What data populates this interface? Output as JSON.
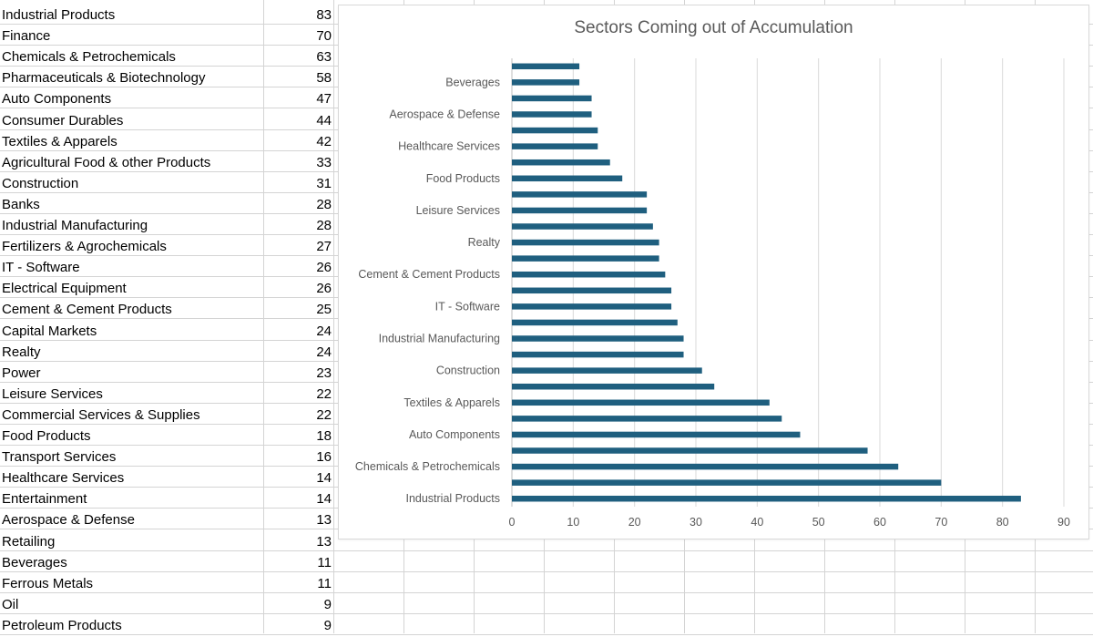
{
  "sheet": {
    "rows": [
      {
        "name": "Industrial Products",
        "value": 83
      },
      {
        "name": "Finance",
        "value": 70
      },
      {
        "name": "Chemicals & Petrochemicals",
        "value": 63
      },
      {
        "name": "Pharmaceuticals & Biotechnology",
        "value": 58
      },
      {
        "name": "Auto Components",
        "value": 47
      },
      {
        "name": "Consumer Durables",
        "value": 44
      },
      {
        "name": "Textiles & Apparels",
        "value": 42
      },
      {
        "name": "Agricultural Food & other Products",
        "value": 33
      },
      {
        "name": "Construction",
        "value": 31
      },
      {
        "name": "Banks",
        "value": 28
      },
      {
        "name": "Industrial Manufacturing",
        "value": 28
      },
      {
        "name": "Fertilizers & Agrochemicals",
        "value": 27
      },
      {
        "name": "IT - Software",
        "value": 26
      },
      {
        "name": "Electrical Equipment",
        "value": 26
      },
      {
        "name": "Cement & Cement Products",
        "value": 25
      },
      {
        "name": "Capital Markets",
        "value": 24
      },
      {
        "name": "Realty",
        "value": 24
      },
      {
        "name": "Power",
        "value": 23
      },
      {
        "name": "Leisure Services",
        "value": 22
      },
      {
        "name": "Commercial Services & Supplies",
        "value": 22
      },
      {
        "name": "Food Products",
        "value": 18
      },
      {
        "name": "Transport Services",
        "value": 16
      },
      {
        "name": "Healthcare Services",
        "value": 14
      },
      {
        "name": "Entertainment",
        "value": 14
      },
      {
        "name": "Aerospace & Defense",
        "value": 13
      },
      {
        "name": "Retailing",
        "value": 13
      },
      {
        "name": "Beverages",
        "value": 11
      },
      {
        "name": "Ferrous Metals",
        "value": 11
      },
      {
        "name": "Oil",
        "value": 9
      },
      {
        "name": "Petroleum Products",
        "value": 9
      }
    ]
  },
  "chart_data": {
    "type": "bar",
    "orientation": "horizontal",
    "title": "Sectors Coming out of Accumulation",
    "xlabel": "",
    "ylabel": "",
    "xlim": [
      0,
      90
    ],
    "x_ticks": [
      0,
      10,
      20,
      30,
      40,
      50,
      60,
      70,
      80,
      90
    ],
    "grid": true,
    "bar_color": "#1f5f7f",
    "categories": [
      "Industrial Products",
      "Finance",
      "Chemicals & Petrochemicals",
      "Pharmaceuticals & Biotechnology",
      "Auto Components",
      "Consumer Durables",
      "Textiles & Apparels",
      "Agricultural Food & other Products",
      "Construction",
      "Banks",
      "Industrial Manufacturing",
      "Fertilizers & Agrochemicals",
      "IT - Software",
      "Electrical Equipment",
      "Cement & Cement Products",
      "Capital Markets",
      "Realty",
      "Power",
      "Leisure Services",
      "Commercial Services & Supplies",
      "Food Products",
      "Transport Services",
      "Healthcare Services",
      "Entertainment",
      "Aerospace & Defense",
      "Retailing",
      "Beverages",
      "Ferrous Metals"
    ],
    "values": [
      83,
      70,
      63,
      58,
      47,
      44,
      42,
      33,
      31,
      28,
      28,
      27,
      26,
      26,
      25,
      24,
      24,
      23,
      22,
      22,
      18,
      16,
      14,
      14,
      13,
      13,
      11,
      11
    ],
    "visible_category_labels": [
      "Industrial Products",
      "Chemicals & Petrochemicals",
      "Auto Components",
      "Textiles & Apparels",
      "Construction",
      "Industrial Manufacturing",
      "IT - Software",
      "Cement & Cement Products",
      "Realty",
      "Leisure Services",
      "Food Products",
      "Healthcare Services",
      "Aerospace & Defense",
      "Beverages"
    ]
  }
}
